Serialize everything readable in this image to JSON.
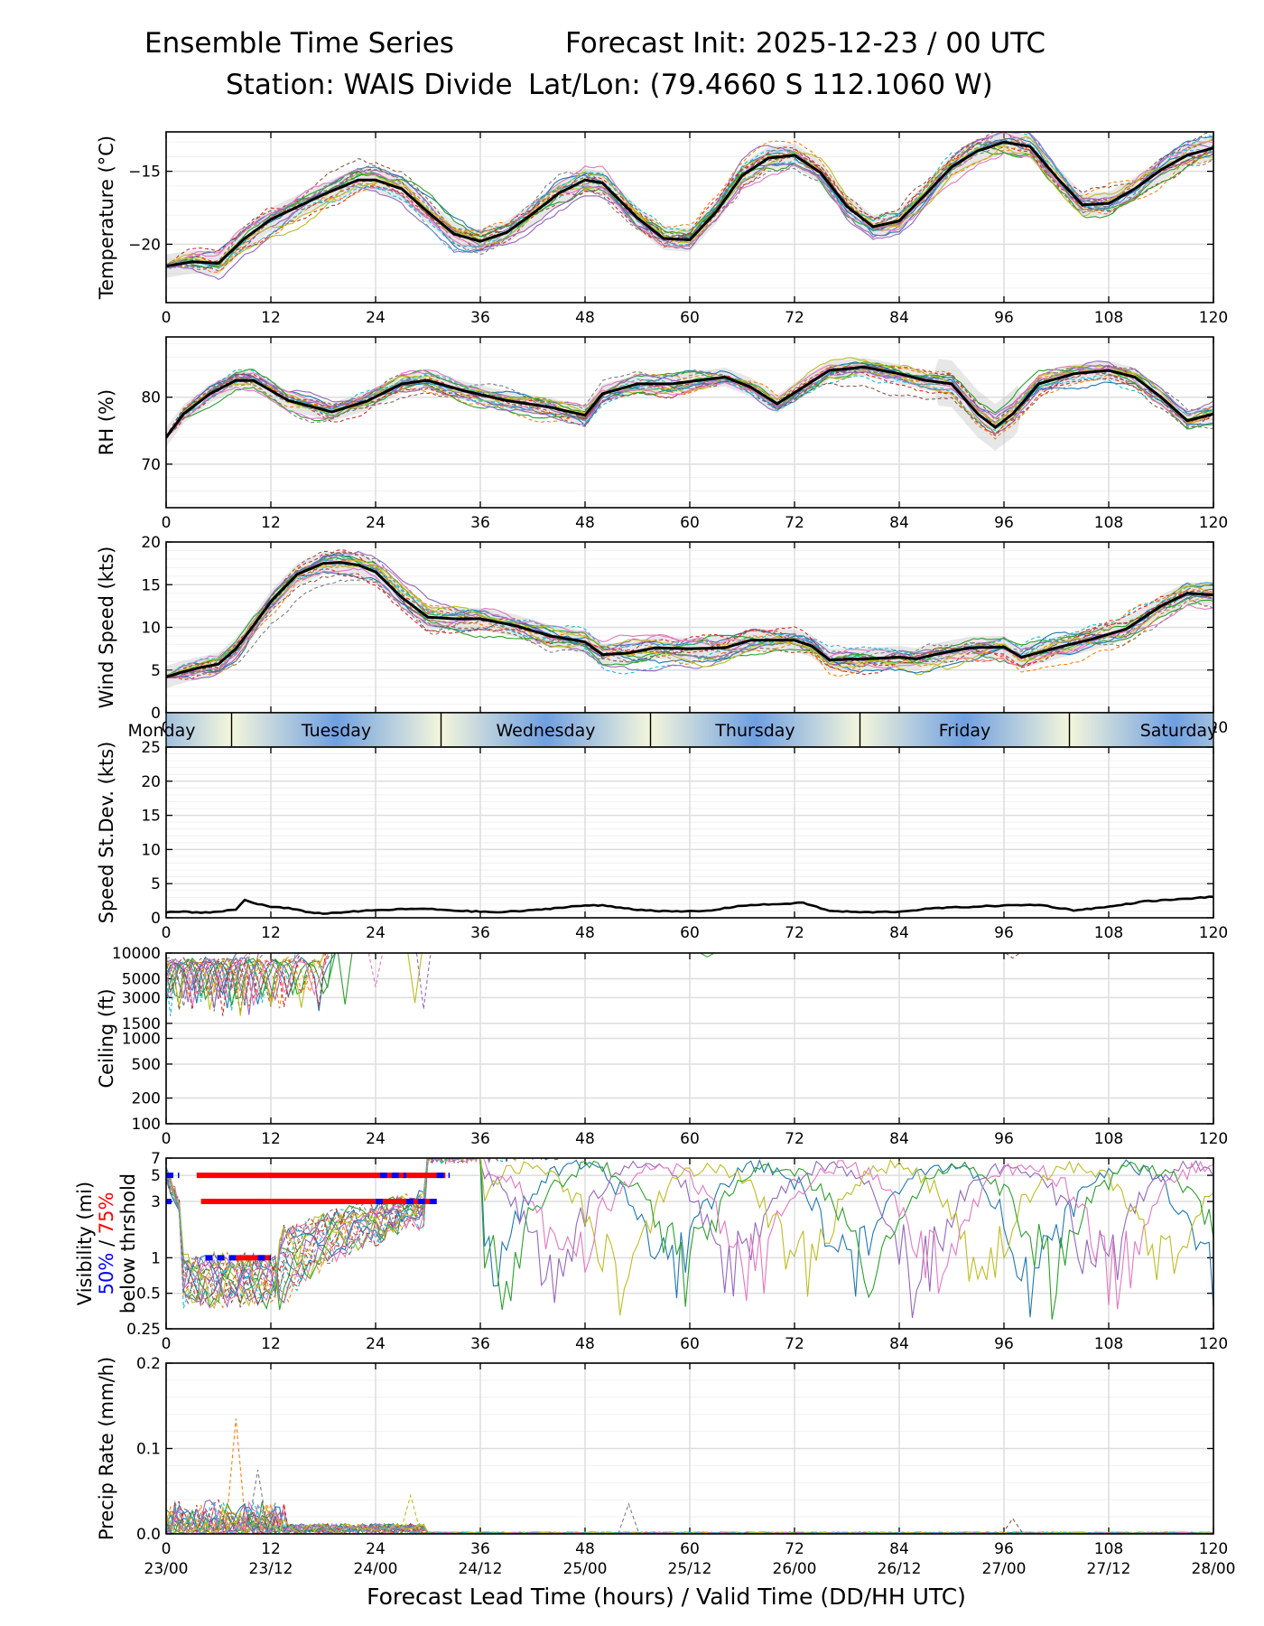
{
  "header": {
    "title_left": "Ensemble Time Series",
    "title_right": "Forecast Init: 2025-12-23 / 00 UTC",
    "station": "Station: WAIS Divide",
    "latlon": "Lat/Lon: (79.4660 S 112.1060 W)"
  },
  "day_bar": {
    "labels": [
      "Monday",
      "Tuesday",
      "Wednesday",
      "Thursday",
      "Friday",
      "Saturday"
    ],
    "label_hours": [
      0,
      19.5,
      43.5,
      67.5,
      91.5,
      115.5
    ],
    "separator_hours": [
      7.5,
      31.5,
      55.5,
      79.5,
      103.5
    ],
    "colors": {
      "blue": "#6f9fe0",
      "light": "#f4f6dc"
    }
  },
  "x_axis": {
    "ticks": [
      0,
      12,
      24,
      36,
      48,
      60,
      72,
      84,
      96,
      108,
      120
    ],
    "valid_time_labels": [
      "23/00",
      "23/12",
      "24/00",
      "24/12",
      "25/00",
      "25/12",
      "26/00",
      "26/12",
      "27/00",
      "27/12",
      "28/00"
    ],
    "xlabel": "Forecast Lead Time (hours) / Valid Time (DD/HH UTC)"
  },
  "chart_data": [
    {
      "id": "temperature",
      "type": "line",
      "ylabel": "Temperature (°C)",
      "yticks": [
        -20,
        -15
      ],
      "ytick_labels": [
        "−20",
        "−15"
      ],
      "ylim": [
        -24,
        -12.3
      ],
      "ensemble_mean": {
        "x": [
          0,
          3,
          6,
          9,
          12,
          18,
          22,
          24,
          27,
          30,
          33,
          36,
          39,
          42,
          45,
          48,
          50,
          54,
          57,
          60,
          63,
          66,
          69,
          72,
          75,
          78,
          81,
          84,
          87,
          90,
          93,
          96,
          99,
          102,
          105,
          108,
          111,
          114,
          117,
          120
        ],
        "y": [
          -21.5,
          -21.2,
          -21.3,
          -19.6,
          -18.3,
          -16.6,
          -15.6,
          -15.6,
          -16.2,
          -17.8,
          -19.3,
          -19.8,
          -19.2,
          -17.9,
          -16.5,
          -15.6,
          -15.8,
          -18.2,
          -19.6,
          -19.7,
          -17.8,
          -15.3,
          -14.1,
          -13.9,
          -15.1,
          -17.4,
          -18.8,
          -18.4,
          -16.6,
          -14.7,
          -13.6,
          -13.0,
          -13.3,
          -15.4,
          -17.3,
          -17.2,
          -16.2,
          -14.9,
          -13.9,
          -13.4
        ]
      },
      "spread": 0.8,
      "n_members": 20
    },
    {
      "id": "rh",
      "type": "line",
      "ylabel": "RH (%)",
      "yticks": [
        70,
        80
      ],
      "ytick_labels": [
        "70",
        "80"
      ],
      "ylim": [
        63.5,
        89
      ],
      "ensemble_mean": {
        "x": [
          0,
          2,
          5,
          8,
          10,
          14,
          19,
          23,
          27,
          30,
          34,
          39,
          44,
          48,
          50,
          54,
          58,
          64,
          67,
          70,
          73,
          76,
          80,
          84,
          87,
          90,
          93,
          95,
          97,
          100,
          104,
          108,
          111,
          114,
          117,
          120
        ],
        "y": [
          74,
          77.5,
          80.5,
          82.5,
          82.5,
          79.5,
          77.8,
          79.4,
          82,
          82.5,
          81,
          79.5,
          78.5,
          77.3,
          80.5,
          82,
          82,
          83,
          81.5,
          79,
          81.5,
          84,
          84.5,
          83.5,
          82.5,
          82,
          77.5,
          75.5,
          77.5,
          82,
          83.5,
          84,
          83,
          80,
          76.5,
          77.5
        ]
      },
      "spread": 1.4,
      "n_members": 20
    },
    {
      "id": "wind_speed",
      "type": "line",
      "ylabel": "Wind Speed (kts)",
      "yticks": [
        0,
        5,
        10,
        15,
        20
      ],
      "ytick_labels": [
        "0",
        "5",
        "10",
        "15",
        "20"
      ],
      "ylim": [
        0,
        20
      ],
      "ensemble_mean": {
        "x": [
          0,
          2,
          4,
          6,
          8,
          10,
          12,
          15,
          18,
          20,
          22,
          24,
          27,
          30,
          33,
          36,
          40,
          44,
          48,
          50,
          53,
          56,
          60,
          64,
          67,
          72,
          74,
          76,
          80,
          84,
          86,
          88,
          92,
          96,
          98,
          102,
          106,
          110,
          114,
          117,
          120
        ],
        "y": [
          4.2,
          4.8,
          5.3,
          5.7,
          7.5,
          10.2,
          13.0,
          16.2,
          17.5,
          17.6,
          17.3,
          16.5,
          13.5,
          11.2,
          11.0,
          11.0,
          10.2,
          9.0,
          8.3,
          6.8,
          7.0,
          7.6,
          7.5,
          7.6,
          8.5,
          8.5,
          7.8,
          6.2,
          6.3,
          6.5,
          6.3,
          6.8,
          7.6,
          7.7,
          6.5,
          7.6,
          8.6,
          9.8,
          12.5,
          14.0,
          13.8
        ]
      },
      "spread": 1.3,
      "n_members": 20
    },
    {
      "id": "speed_stdev",
      "type": "line",
      "ylabel": "Speed St.Dev. (kts)",
      "yticks": [
        0,
        5,
        10,
        15,
        20,
        25
      ],
      "ytick_labels": [
        "0",
        "5",
        "10",
        "15",
        "20",
        "25"
      ],
      "ylim": [
        0,
        25
      ],
      "series": [
        {
          "name": "st_dev",
          "x": [
            0,
            2,
            4,
            6,
            8,
            9,
            10,
            12,
            14,
            16,
            18,
            20,
            24,
            28,
            30,
            34,
            38,
            42,
            46,
            48,
            50,
            54,
            58,
            62,
            66,
            70,
            73,
            76,
            80,
            84,
            88,
            92,
            96,
            100,
            104,
            108,
            112,
            116,
            120
          ],
          "y": [
            0.8,
            0.9,
            0.7,
            0.9,
            1.2,
            2.6,
            2.2,
            1.6,
            1.4,
            0.9,
            0.6,
            0.8,
            1.1,
            1.3,
            1.3,
            1.0,
            0.8,
            1.1,
            1.6,
            1.8,
            1.8,
            1.2,
            0.9,
            1.0,
            1.8,
            2.0,
            2.2,
            1.0,
            0.8,
            0.9,
            1.4,
            1.6,
            1.8,
            1.9,
            1.1,
            1.6,
            2.4,
            2.7,
            3.1
          ]
        }
      ]
    },
    {
      "id": "ceiling",
      "type": "line",
      "ylabel": "Ceiling (ft)",
      "yscale": "log",
      "yticks": [
        100,
        200,
        500,
        1000,
        1500,
        3000,
        5000,
        10000
      ],
      "ytick_labels": [
        "100",
        "200",
        "500",
        "1000",
        "1500",
        "3000",
        "5000",
        "10000"
      ],
      "ylim": [
        100,
        10000
      ],
      "n_members": 18
    },
    {
      "id": "visibility",
      "type": "line",
      "ylabel": "Visibility (mi)",
      "ylabel_2": "50% / 75%",
      "ylabel_2_parts": [
        "50%",
        "75%"
      ],
      "ylabel_3": "below thrshold",
      "yscale": "log",
      "yticks": [
        0.25,
        0.5,
        1,
        3,
        5,
        7
      ],
      "ytick_labels": [
        "0.25",
        "0.5",
        "1",
        "3",
        "5",
        "7"
      ],
      "ylim": [
        0.25,
        7
      ],
      "threshold_bars": [
        {
          "level": 5,
          "color": "red",
          "x0": 3.5,
          "x1": 32
        },
        {
          "level": 3,
          "color": "red",
          "x0": 4,
          "x1": 31
        },
        {
          "level": 1,
          "color": "red",
          "x0": 8,
          "x1": 12
        },
        {
          "level": 5,
          "color": "blue",
          "x0": 0,
          "x1": 1.5
        },
        {
          "level": 5,
          "color": "blue",
          "x0": 24.5,
          "x1": 27.5
        },
        {
          "level": 5,
          "color": "blue",
          "x0": 31,
          "x1": 32.5
        },
        {
          "level": 3,
          "color": "blue",
          "x0": 0,
          "x1": 0.6
        },
        {
          "level": 3,
          "color": "blue",
          "x0": 24,
          "x1": 25
        },
        {
          "level": 3,
          "color": "blue",
          "x0": 27.5,
          "x1": 31
        },
        {
          "level": 1,
          "color": "blue",
          "x0": 4.5,
          "x1": 8
        },
        {
          "level": 1,
          "color": "blue",
          "x0": 10.5,
          "x1": 12
        }
      ],
      "n_members": 20
    },
    {
      "id": "precip",
      "type": "line",
      "ylabel": "Precip Rate (mm/h)",
      "yticks": [
        0,
        0.1,
        0.2
      ],
      "ytick_labels": [
        "0.0",
        "0.1",
        "0.2"
      ],
      "ylim": [
        0,
        0.2
      ],
      "n_members": 20
    }
  ]
}
